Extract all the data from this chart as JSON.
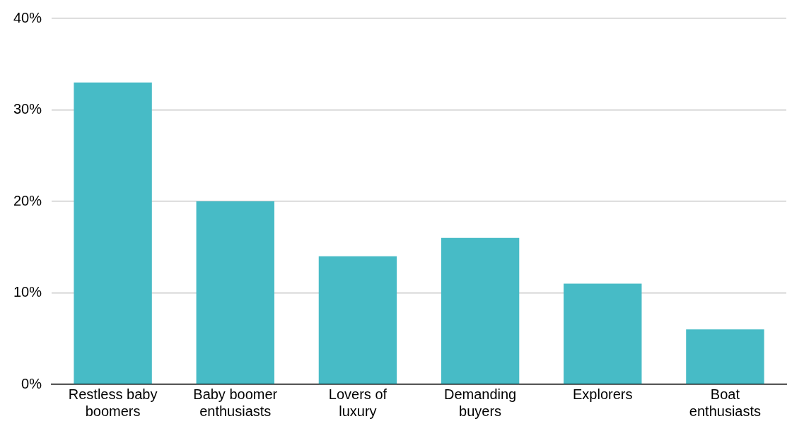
{
  "chart_data": {
    "type": "bar",
    "categories": [
      "Restless baby boomers",
      "Baby boomer enthusiasts",
      "Lovers of luxury",
      "Demanding buyers",
      "Explorers",
      "Boat enthusiasts"
    ],
    "values": [
      33,
      20,
      14,
      16,
      11,
      6
    ],
    "color": "#47bbc6",
    "ylim": [
      0,
      40
    ],
    "yticks": [
      {
        "value": 0,
        "label": "0%"
      },
      {
        "value": 10,
        "label": "10%"
      },
      {
        "value": 20,
        "label": "20%"
      },
      {
        "value": 30,
        "label": "30%"
      },
      {
        "value": 40,
        "label": "40%"
      }
    ],
    "grid": "y"
  }
}
